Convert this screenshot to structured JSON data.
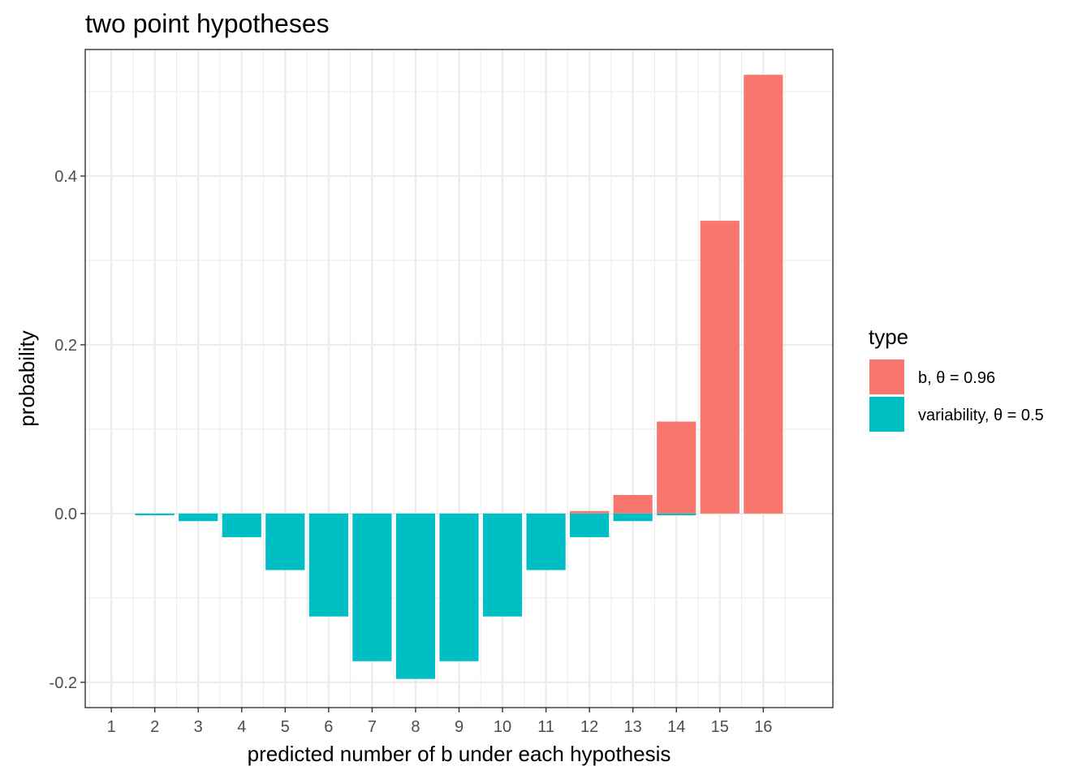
{
  "chart_data": {
    "type": "bar",
    "title": "two point hypotheses",
    "xlabel": "predicted number of b under each hypothesis",
    "ylabel": "probability",
    "categories": [
      "1",
      "2",
      "3",
      "4",
      "5",
      "6",
      "7",
      "8",
      "9",
      "10",
      "11",
      "12",
      "13",
      "14",
      "15",
      "16"
    ],
    "series": [
      {
        "name": "b, θ = 0.96",
        "color": "#F8766D",
        "values": [
          0,
          0,
          0,
          0,
          0,
          0,
          0,
          0,
          0,
          0,
          0,
          0.003,
          0.022,
          0.109,
          0.347,
          0.52
        ]
      },
      {
        "name": "variability, θ = 0.5",
        "color": "#00BFC4",
        "values": [
          0,
          -0.002,
          -0.009,
          -0.028,
          -0.067,
          -0.122,
          -0.175,
          -0.196,
          -0.175,
          -0.122,
          -0.067,
          -0.028,
          -0.009,
          -0.002,
          0,
          0
        ]
      }
    ],
    "yticks": [
      -0.2,
      0.0,
      0.2,
      0.4
    ],
    "ytick_labels": [
      "-0.2",
      "0.0",
      "0.2",
      "0.4"
    ],
    "ylim": [
      -0.23,
      0.55
    ],
    "xlim": [
      0.4,
      17.6
    ],
    "grid": true,
    "legend": {
      "title": "type",
      "placement": "right"
    }
  }
}
